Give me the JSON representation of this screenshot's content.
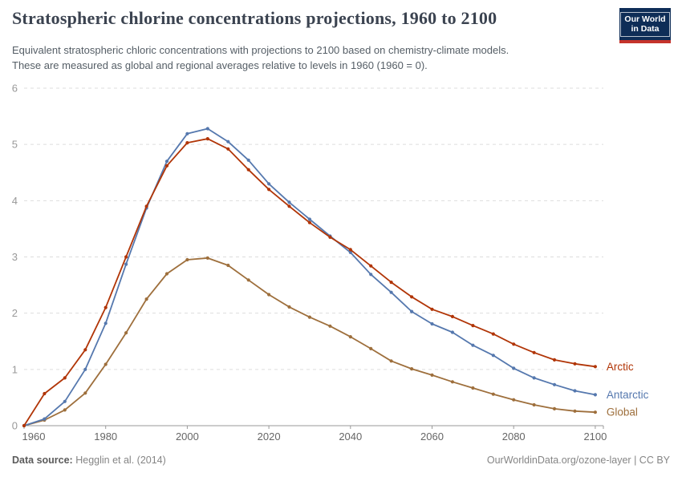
{
  "header": {
    "title": "Stratospheric chlorine concentrations projections, 1960 to 2100",
    "subtitle_line1": "Equivalent stratospheric chloric concentrations with projections to 2100 based on chemistry-climate models.",
    "subtitle_line2": "These are measured as global and regional averages relative to levels in 1960 (1960 = 0).",
    "logo": {
      "line1": "Our World",
      "line2": "in Data",
      "bg_color": "#0e2d57",
      "accent_color": "#c5332b"
    }
  },
  "chart_data": {
    "type": "line",
    "title": "Stratospheric chlorine concentrations projections, 1960 to 2100",
    "x": [
      1960,
      1965,
      1970,
      1975,
      1980,
      1985,
      1990,
      1995,
      2000,
      2005,
      2010,
      2015,
      2020,
      2025,
      2030,
      2035,
      2040,
      2045,
      2050,
      2055,
      2060,
      2065,
      2070,
      2075,
      2080,
      2085,
      2090,
      2095,
      2100
    ],
    "series": [
      {
        "name": "Global",
        "color": "#9e6f3c",
        "values": [
          0,
          0.1,
          0.28,
          0.58,
          1.09,
          1.65,
          2.25,
          2.7,
          2.95,
          2.98,
          2.85,
          2.59,
          2.33,
          2.11,
          1.93,
          1.77,
          1.58,
          1.37,
          1.15,
          1.01,
          0.9,
          0.78,
          0.67,
          0.56,
          0.46,
          0.37,
          0.3,
          0.26,
          0.24
        ]
      },
      {
        "name": "Antarctic",
        "color": "#5578ae",
        "values": [
          0,
          0.12,
          0.43,
          1.0,
          1.82,
          2.87,
          3.87,
          4.7,
          5.19,
          5.28,
          5.05,
          4.72,
          4.3,
          3.97,
          3.67,
          3.37,
          3.08,
          2.69,
          2.37,
          2.03,
          1.81,
          1.66,
          1.43,
          1.25,
          1.02,
          0.85,
          0.73,
          0.62,
          0.55
        ]
      },
      {
        "name": "Arctic",
        "color": "#b13507",
        "values": [
          0,
          0.57,
          0.85,
          1.35,
          2.1,
          3.0,
          3.9,
          4.62,
          5.03,
          5.1,
          4.92,
          4.55,
          4.2,
          3.9,
          3.61,
          3.35,
          3.13,
          2.84,
          2.55,
          2.29,
          2.07,
          1.94,
          1.78,
          1.63,
          1.45,
          1.3,
          1.17,
          1.1,
          1.05
        ]
      }
    ],
    "xlabel": "",
    "ylabel": "",
    "ylim": [
      0,
      6
    ],
    "yticks": [
      0,
      1,
      2,
      3,
      4,
      5,
      6
    ],
    "xticks": [
      1960,
      1980,
      2000,
      2020,
      2040,
      2060,
      2080,
      2100
    ],
    "grid": "horizontal-dashed",
    "legend_position": "end-of-line-labels",
    "axis_color": "#999999",
    "grid_color": "#dddddd",
    "ytick_label_color": "#999999",
    "xtick_label_color": "#666666"
  },
  "footer": {
    "datasource_label": "Data source:",
    "datasource_value": "Hegglin et al. (2014)",
    "link": "OurWorldinData.org/ozone-layer",
    "separator": "|",
    "license": "CC BY"
  }
}
